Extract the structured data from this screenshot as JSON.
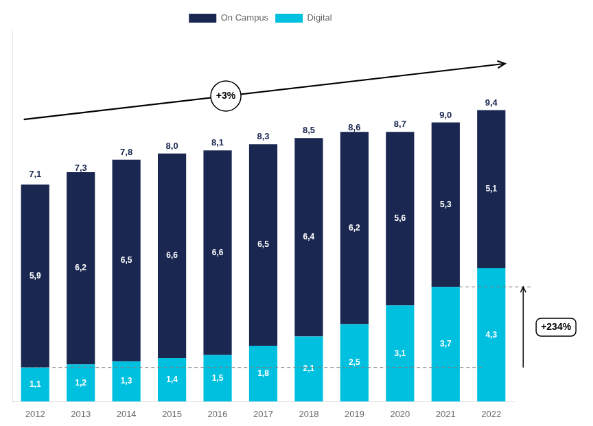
{
  "chart_data": {
    "type": "bar",
    "stacked": true,
    "categories": [
      "2012",
      "2013",
      "2014",
      "2015",
      "2016",
      "2017",
      "2018",
      "2019",
      "2020",
      "2021",
      "2022"
    ],
    "series": [
      {
        "name": "Digital",
        "color": "#00c0e0",
        "values": [
          1.1,
          1.2,
          1.3,
          1.4,
          1.5,
          1.8,
          2.1,
          2.5,
          3.1,
          3.7,
          4.3
        ],
        "value_labels": [
          "1,1",
          "1,2",
          "1,3",
          "1,4",
          "1,5",
          "1,8",
          "2,1",
          "2,5",
          "3,1",
          "3,7",
          "4,3"
        ]
      },
      {
        "name": "On Campus",
        "color": "#1a2750",
        "values": [
          5.9,
          6.2,
          6.5,
          6.6,
          6.6,
          6.5,
          6.4,
          6.2,
          5.6,
          5.3,
          5.1
        ],
        "value_labels": [
          "5,9",
          "6,2",
          "6,5",
          "6,6",
          "6,6",
          "6,5",
          "6,4",
          "6,2",
          "5,6",
          "5,3",
          "5,1"
        ]
      }
    ],
    "totals": {
      "values": [
        7.1,
        7.3,
        7.8,
        8.0,
        8.1,
        8.3,
        8.5,
        8.6,
        8.7,
        9.0,
        9.4
      ],
      "value_labels": [
        "7,1",
        "7,3",
        "7,8",
        "8,0",
        "8,1",
        "8,3",
        "8,5",
        "8,6",
        "8,7",
        "9,0",
        "9,4"
      ]
    },
    "data_labels": true,
    "ylim": [
      0,
      12.0
    ],
    "tick_labels": "x",
    "grid": false,
    "legend": "top",
    "dashed_lines": [
      1.1,
      3.7
    ],
    "annotations": {
      "total_growth": "+3%",
      "digital_growth": "+234%"
    }
  }
}
